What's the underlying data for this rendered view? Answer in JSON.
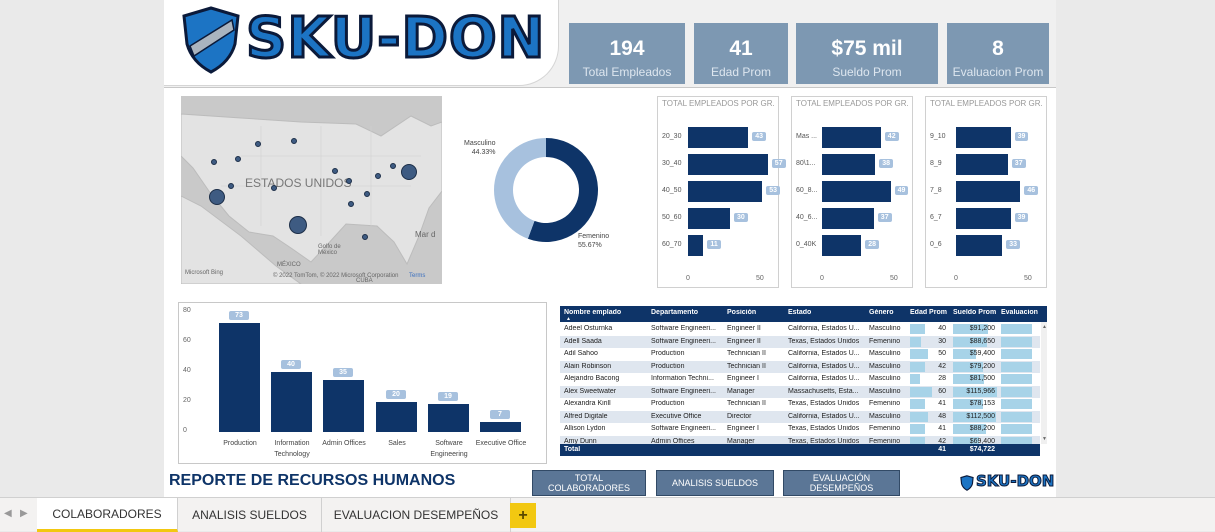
{
  "header": {
    "logo_text": "SKU-DON",
    "kpis": [
      {
        "value": "194",
        "label": "Total Empleados"
      },
      {
        "value": "41",
        "label": "Edad Prom"
      },
      {
        "value": "$75 mil",
        "label": "Sueldo Prom"
      },
      {
        "value": "8",
        "label": "Evaluacion Prom"
      }
    ]
  },
  "map": {
    "country_label": "ESTADOS UNIDOS",
    "gulf_label": "Golfo de\nMéxico",
    "mexico_label": "MÉXICO",
    "sea_label": "Mar d",
    "cuba_label": "CUBA",
    "attribution": "© 2022 TomTom, © 2022 Microsoft Corporation",
    "terms": "Terms",
    "bing": "Microsoft Bing"
  },
  "donut": {
    "slices": [
      {
        "label": "Masculino",
        "pct": "44.33%",
        "value": 44.33,
        "color": "#a7c1de"
      },
      {
        "label": "Femenino",
        "pct": "55.67%",
        "value": 55.67,
        "color": "#0e3468"
      }
    ]
  },
  "bar_panels": [
    {
      "title": "TOTAL EMPLEADOS POR GR...",
      "max": 50,
      "ticks": [
        "0",
        "50"
      ],
      "rows": [
        {
          "cat": "20_30",
          "v": 43
        },
        {
          "cat": "30_40",
          "v": 57
        },
        {
          "cat": "40_50",
          "v": 53
        },
        {
          "cat": "50_60",
          "v": 30
        },
        {
          "cat": "60_70",
          "v": 11
        }
      ]
    },
    {
      "title": "TOTAL EMPLEADOS POR GR...",
      "max": 50,
      "ticks": [
        "0",
        "50"
      ],
      "rows": [
        {
          "cat": "Mas ...",
          "v": 42
        },
        {
          "cat": "80\\1...",
          "v": 38
        },
        {
          "cat": "60_8...",
          "v": 49
        },
        {
          "cat": "40_6...",
          "v": 37
        },
        {
          "cat": "0_40K",
          "v": 28
        }
      ]
    },
    {
      "title": "TOTAL EMPLEADOS POR GR...",
      "max": 50,
      "ticks": [
        "0",
        "50"
      ],
      "rows": [
        {
          "cat": "9_10",
          "v": 39
        },
        {
          "cat": "8_9",
          "v": 37
        },
        {
          "cat": "7_8",
          "v": 46
        },
        {
          "cat": "6_7",
          "v": 39
        },
        {
          "cat": "0_6",
          "v": 33
        }
      ]
    }
  ],
  "chart_data": {
    "type": "bar",
    "categories": [
      "Production",
      "Information Technology",
      "Admin Offices",
      "Sales",
      "Software Engineering",
      "Executive Office"
    ],
    "values": [
      73,
      40,
      35,
      20,
      19,
      7
    ],
    "ylim": [
      0,
      80
    ],
    "yticks": [
      "0",
      "20",
      "40",
      "60",
      "80"
    ]
  },
  "table": {
    "columns": [
      "Nombre emplado",
      "Departamento",
      "Posición",
      "Estado",
      "Género",
      "Edad Prom",
      "Sueldo Prom",
      "Evaluacion"
    ],
    "rows": [
      [
        "Adeel Osturnka",
        "Software Engineeri...",
        "Engineer II",
        "California, Estados U...",
        "Masculino",
        "40",
        "$91,200",
        8
      ],
      [
        "Adell Saada",
        "Software Engineeri...",
        "Engineer II",
        "Texas, Estados Unidos",
        "Femenino",
        "30",
        "$88,650",
        8
      ],
      [
        "Adil Sahoo",
        "Production",
        "Technician II",
        "California, Estados U...",
        "Masculino",
        "50",
        "$59,400",
        8
      ],
      [
        "Alain Robinson",
        "Production",
        "Technician II",
        "California, Estados U...",
        "Masculino",
        "42",
        "$79,200",
        8
      ],
      [
        "Alejandro Bacong",
        "Information Techni...",
        "Engineer I",
        "California, Estados U...",
        "Masculino",
        "28",
        "$81,500",
        8
      ],
      [
        "Alex Sweetwater",
        "Software Engineeri...",
        "Manager",
        "Massachusetts, Esta...",
        "Masculino",
        "60",
        "$115,966",
        8
      ],
      [
        "Alexandra Kirill",
        "Production",
        "Technician II",
        "Texas, Estados Unidos",
        "Femenino",
        "41",
        "$78,153",
        8
      ],
      [
        "Alfred Digitale",
        "Executive Office",
        "Director",
        "California, Estados U...",
        "Masculino",
        "48",
        "$112,500",
        8
      ],
      [
        "Allison Lydon",
        "Software Engineeri...",
        "Engineer I",
        "Texas, Estados Unidos",
        "Femenino",
        "41",
        "$88,200",
        8
      ],
      [
        "Amy Dunn",
        "Admin Offices",
        "Manager",
        "Texas, Estados Unidos",
        "Femenino",
        "42",
        "$69,400",
        8
      ]
    ],
    "total_label": "Total",
    "total_age": "41",
    "total_salary": "$74,722"
  },
  "footer": {
    "title": "REPORTE DE RECURSOS HUMANOS",
    "buttons": [
      "TOTAL COLABORADORES",
      "ANALISIS SUELDOS",
      "EVALUACIÓN\nDESEMPEÑOS"
    ],
    "logo_text": "SKU-DON"
  },
  "tabs": {
    "items": [
      "COLABORADORES",
      "ANALISIS SUELDOS",
      "EVALUACION DESEMPEÑOS"
    ],
    "add": "+"
  }
}
